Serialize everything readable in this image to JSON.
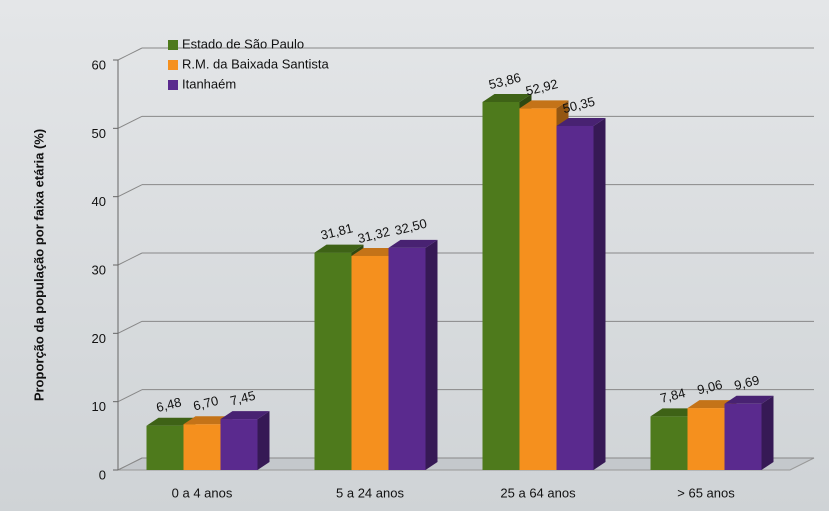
{
  "chart_data": {
    "type": "bar3d",
    "y_label": "Proporção da população por faixa etária (%)",
    "categories": [
      "0 a 4 anos",
      "5 a 24 anos",
      "25 a 64 anos",
      "> 65 anos"
    ],
    "series": [
      {
        "name": "Estado de São Paulo",
        "color": "#4e7a1c",
        "values": [
          6.48,
          31.81,
          53.86,
          7.84
        ],
        "value_labels": [
          "6,48",
          "31,81",
          "53,86",
          "7,84"
        ]
      },
      {
        "name": "R.M. da Baixada Santista",
        "color": "#f5901e",
        "values": [
          6.7,
          31.32,
          52.92,
          9.06
        ],
        "value_labels": [
          "6,70",
          "31,32",
          "52,92",
          "9,06"
        ]
      },
      {
        "name": "Itanhaém",
        "color": "#5a2a8e",
        "values": [
          7.45,
          32.5,
          50.35,
          9.69
        ],
        "value_labels": [
          "7,45",
          "32,50",
          "50,35",
          "9,69"
        ]
      }
    ],
    "ylim": [
      0,
      60
    ],
    "yticks": [
      0,
      10,
      20,
      30,
      40,
      50,
      60
    ],
    "grid": true
  }
}
